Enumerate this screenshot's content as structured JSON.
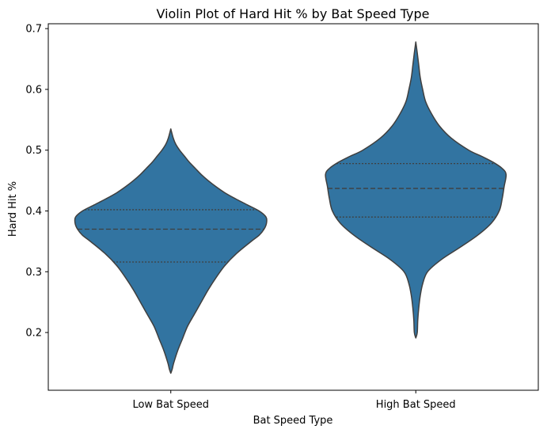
{
  "chart_data": {
    "type": "violin",
    "title": "Violin Plot of Hard Hit % by Bat Speed Type",
    "xlabel": "Bat Speed Type",
    "ylabel": "Hard Hit %",
    "ylim": [
      0.105,
      0.708
    ],
    "yticks": [
      0.2,
      0.3,
      0.4,
      0.5,
      0.6,
      0.7
    ],
    "yticklabels": [
      "0.2",
      "0.3",
      "0.4",
      "0.5",
      "0.6",
      "0.7"
    ],
    "categories": [
      "Low Bat Speed",
      "High Bat Speed"
    ],
    "fill_color": "#3274a1",
    "edge_color": "#3f3f3f",
    "grid": false,
    "violins": [
      {
        "category": "Low Bat Speed",
        "min": 0.133,
        "max": 0.535,
        "q1": 0.316,
        "median": 0.37,
        "q3": 0.402,
        "profile": [
          [
            0.133,
            0.0
          ],
          [
            0.14,
            0.015
          ],
          [
            0.15,
            0.03
          ],
          [
            0.17,
            0.07
          ],
          [
            0.19,
            0.12
          ],
          [
            0.21,
            0.17
          ],
          [
            0.23,
            0.24
          ],
          [
            0.25,
            0.31
          ],
          [
            0.27,
            0.38
          ],
          [
            0.29,
            0.46
          ],
          [
            0.31,
            0.55
          ],
          [
            0.33,
            0.67
          ],
          [
            0.35,
            0.82
          ],
          [
            0.36,
            0.9
          ],
          [
            0.37,
            0.95
          ],
          [
            0.38,
            0.975
          ],
          [
            0.39,
            0.97
          ],
          [
            0.4,
            0.9
          ],
          [
            0.41,
            0.78
          ],
          [
            0.42,
            0.66
          ],
          [
            0.43,
            0.55
          ],
          [
            0.44,
            0.46
          ],
          [
            0.45,
            0.38
          ],
          [
            0.46,
            0.31
          ],
          [
            0.47,
            0.25
          ],
          [
            0.48,
            0.19
          ],
          [
            0.49,
            0.14
          ],
          [
            0.5,
            0.09
          ],
          [
            0.51,
            0.05
          ],
          [
            0.52,
            0.025
          ],
          [
            0.535,
            0.0
          ]
        ]
      },
      {
        "category": "High Bat Speed",
        "min": 0.191,
        "max": 0.678,
        "q1": 0.39,
        "median": 0.437,
        "q3": 0.478,
        "profile": [
          [
            0.191,
            0.0
          ],
          [
            0.2,
            0.015
          ],
          [
            0.22,
            0.02
          ],
          [
            0.24,
            0.03
          ],
          [
            0.26,
            0.045
          ],
          [
            0.28,
            0.07
          ],
          [
            0.3,
            0.12
          ],
          [
            0.32,
            0.26
          ],
          [
            0.34,
            0.45
          ],
          [
            0.36,
            0.63
          ],
          [
            0.38,
            0.77
          ],
          [
            0.4,
            0.85
          ],
          [
            0.42,
            0.88
          ],
          [
            0.44,
            0.9
          ],
          [
            0.46,
            0.92
          ],
          [
            0.47,
            0.88
          ],
          [
            0.48,
            0.79
          ],
          [
            0.49,
            0.67
          ],
          [
            0.5,
            0.54
          ],
          [
            0.52,
            0.36
          ],
          [
            0.54,
            0.24
          ],
          [
            0.56,
            0.16
          ],
          [
            0.58,
            0.1
          ],
          [
            0.6,
            0.07
          ],
          [
            0.62,
            0.045
          ],
          [
            0.64,
            0.03
          ],
          [
            0.66,
            0.015
          ],
          [
            0.678,
            0.0
          ]
        ]
      }
    ]
  }
}
